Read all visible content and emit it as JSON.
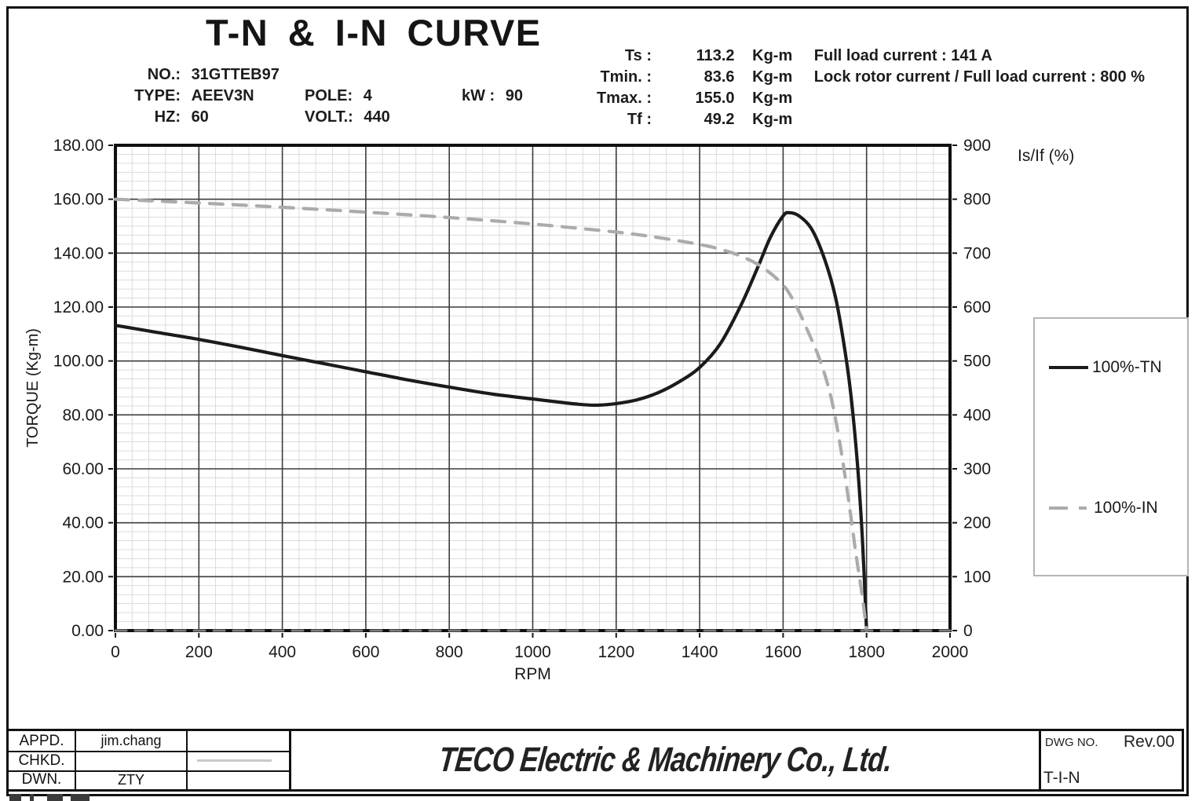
{
  "page": {
    "title": "T-N & I-N CURVE"
  },
  "specs_left": {
    "no_label": "NO.:",
    "no_value": "31GTTEB97",
    "type_label": "TYPE:",
    "type_value": "AEEV3N",
    "pole_label": "POLE:",
    "pole_value": "4",
    "kw_label": "kW :",
    "kw_value": "90",
    "hz_label": "HZ:",
    "hz_value": "60",
    "volt_label": "VOLT.:",
    "volt_value": "440"
  },
  "specs_right": {
    "rows": [
      {
        "label": "Ts :",
        "value": "113.2",
        "unit": "Kg-m",
        "extra": "Full load current : 141 A"
      },
      {
        "label": "Tmin. :",
        "value": "83.6",
        "unit": "Kg-m",
        "extra": "Lock rotor current / Full load current : 800 %"
      },
      {
        "label": "Tmax. :",
        "value": "155.0",
        "unit": "Kg-m",
        "extra": ""
      },
      {
        "label": "Tf :",
        "value": "49.2",
        "unit": "Kg-m",
        "extra": ""
      }
    ]
  },
  "chart_data": {
    "type": "line",
    "title": "T-N & I-N CURVE",
    "xlabel": "RPM",
    "ylabel_left": "TORQUE (Kg-m)",
    "ylabel_right": "Is/If (%)",
    "x_range": [
      0,
      2000
    ],
    "x_major_step": 200,
    "x_minor_per_major": 5,
    "y_left_range": [
      0,
      180
    ],
    "y_left_major_step": 20,
    "y_left_minor_per_major": 6,
    "y_right_range": [
      0,
      900
    ],
    "y_right_major_step": 100,
    "grid": "on",
    "legend_position": "right",
    "x_tick_labels": [
      "0",
      "200",
      "400",
      "600",
      "800",
      "1000",
      "1200",
      "1400",
      "1600",
      "1800",
      "2000"
    ],
    "y_left_tick_labels": [
      "0.00",
      "20.00",
      "40.00",
      "60.00",
      "80.00",
      "100.00",
      "120.00",
      "140.00",
      "160.00",
      "180.00"
    ],
    "y_right_tick_labels": [
      "0",
      "100",
      "200",
      "300",
      "400",
      "500",
      "600",
      "700",
      "800",
      "900"
    ],
    "series": [
      {
        "name": "100%-TN",
        "axis": "left",
        "style": "solid",
        "color": "#1b1b1b",
        "points": [
          [
            0,
            113.2
          ],
          [
            100,
            110.6
          ],
          [
            200,
            108.0
          ],
          [
            300,
            105.1
          ],
          [
            400,
            102.0
          ],
          [
            500,
            99.0
          ],
          [
            600,
            96.0
          ],
          [
            700,
            93.0
          ],
          [
            800,
            90.3
          ],
          [
            900,
            87.8
          ],
          [
            1000,
            85.9
          ],
          [
            1060,
            84.8
          ],
          [
            1100,
            84.1
          ],
          [
            1150,
            83.6
          ],
          [
            1200,
            84.2
          ],
          [
            1250,
            85.6
          ],
          [
            1300,
            88.2
          ],
          [
            1350,
            92.2
          ],
          [
            1400,
            97.6
          ],
          [
            1450,
            106.5
          ],
          [
            1500,
            121.0
          ],
          [
            1540,
            135.0
          ],
          [
            1570,
            146.0
          ],
          [
            1600,
            153.8
          ],
          [
            1615,
            155.0
          ],
          [
            1640,
            153.6
          ],
          [
            1670,
            148.5
          ],
          [
            1700,
            137.5
          ],
          [
            1725,
            124.0
          ],
          [
            1745,
            107.0
          ],
          [
            1762,
            88.0
          ],
          [
            1778,
            62.0
          ],
          [
            1790,
            34.0
          ],
          [
            1800,
            0.0
          ]
        ]
      },
      {
        "name": "100%-IN",
        "axis": "right",
        "style": "dashed",
        "color": "#ababab",
        "points": [
          [
            0,
            800
          ],
          [
            200,
            793
          ],
          [
            400,
            785
          ],
          [
            600,
            776
          ],
          [
            800,
            766
          ],
          [
            1000,
            754
          ],
          [
            1200,
            739
          ],
          [
            1300,
            729
          ],
          [
            1400,
            716
          ],
          [
            1450,
            707
          ],
          [
            1500,
            694
          ],
          [
            1550,
            674
          ],
          [
            1600,
            641
          ],
          [
            1630,
            604
          ],
          [
            1660,
            554
          ],
          [
            1690,
            498
          ],
          [
            1715,
            432
          ],
          [
            1735,
            352
          ],
          [
            1755,
            252
          ],
          [
            1775,
            140
          ],
          [
            1790,
            62
          ],
          [
            1800,
            0
          ]
        ]
      },
      {
        "name": "zero-baseline",
        "axis": "left",
        "style": "dashed",
        "color": "#7a7a7a",
        "points": [
          [
            0,
            0
          ],
          [
            2000,
            0
          ]
        ]
      }
    ],
    "key_values": {
      "Ts": 113.2,
      "Tmin": 83.6,
      "Tmax": 155.0,
      "Tf": 49.2,
      "full_load_current_A": 141,
      "lock_rotor_to_full_load_pct": 800
    }
  },
  "title_block": {
    "rows": [
      {
        "label": "APPD.",
        "value": "jim.chang"
      },
      {
        "label": "CHKD.",
        "value": ""
      },
      {
        "label": "DWN.",
        "value": "ZTY"
      }
    ],
    "company": "TECO Electric & Machinery Co., Ltd.",
    "dwg_no_label": "DWG NO.",
    "rev": "Rev.00",
    "dwg_name": "T-I-N"
  }
}
